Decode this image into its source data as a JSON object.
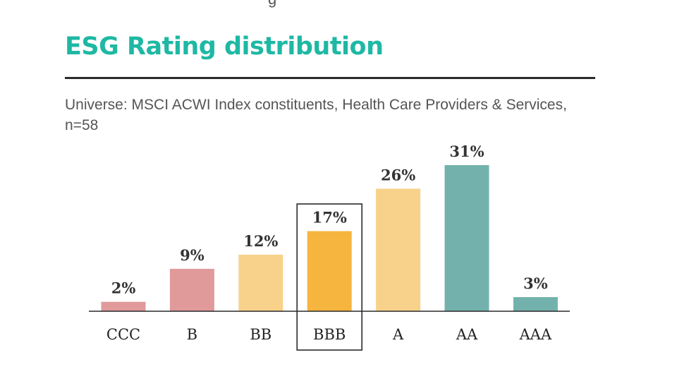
{
  "header": {
    "cut_off_text": "g",
    "title": "ESG Rating distribution",
    "subtitle": "Universe: MSCI ACWI Index constituents, Health Care Providers & Services, n=58"
  },
  "colors": {
    "title": "#1eb8a4",
    "laggard": "#e09a9a",
    "average": "#f8d28a",
    "average_highlight": "#f6b53e",
    "leader": "#73b2ac",
    "axis": "#2b2b2b"
  },
  "chart_data": {
    "type": "bar",
    "title": "ESG Rating distribution",
    "categories": [
      "CCC",
      "B",
      "BB",
      "BBB",
      "A",
      "AA",
      "AAA"
    ],
    "values": [
      2,
      9,
      12,
      17,
      26,
      31,
      3
    ],
    "value_labels": [
      "2%",
      "9%",
      "12%",
      "17%",
      "26%",
      "31%",
      "3%"
    ],
    "bar_color_keys": [
      "laggard",
      "laggard",
      "average",
      "average_highlight",
      "average",
      "leader",
      "leader"
    ],
    "highlighted_category": "BBB",
    "unit": "%",
    "xlabel": "",
    "ylabel": "",
    "ylim": [
      0,
      31
    ],
    "grid": false
  }
}
